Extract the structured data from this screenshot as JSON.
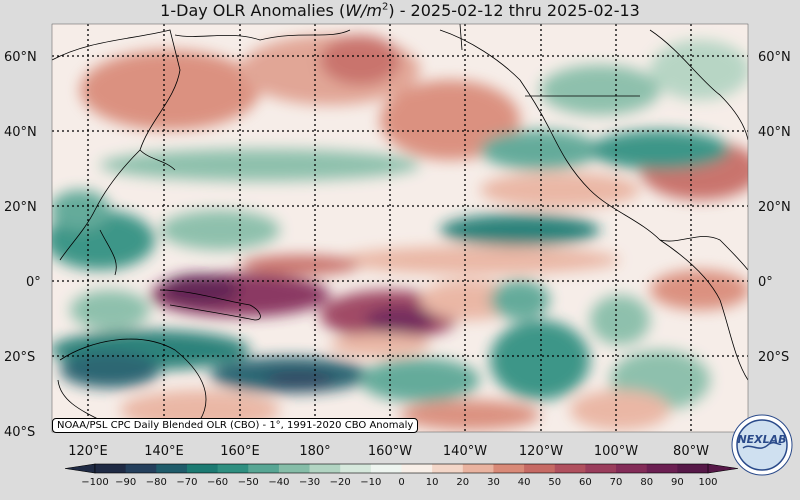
{
  "title_prefix": "1-Day OLR Anomalies (",
  "title_unit": "W/m",
  "title_unit_exp": "2",
  "title_suffix": ") - 2025-02-12 thru 2025-02-13",
  "source_label": "NOAA/PSL CPC Daily Blended OLR (CBO) - 1°, 1991-2020 CBO Anomaly",
  "logo_text": "NEXLAB",
  "lat_labels": [
    "60°N",
    "40°N",
    "20°N",
    "0°",
    "20°S",
    "40°S"
  ],
  "lon_labels": [
    "120°E",
    "140°E",
    "160°E",
    "180°",
    "160°W",
    "140°W",
    "120°W",
    "100°W",
    "80°W"
  ],
  "colorbar": {
    "ticks": [
      "−100",
      "−90",
      "−80",
      "−70",
      "−60",
      "−50",
      "−40",
      "−30",
      "−20",
      "−10",
      "0",
      "10",
      "20",
      "30",
      "40",
      "50",
      "60",
      "70",
      "80",
      "90",
      "100"
    ],
    "colors": [
      "#1f2a44",
      "#243f5c",
      "#1f5b6a",
      "#1c7a72",
      "#2f8f80",
      "#58a694",
      "#86bda8",
      "#b2d4c2",
      "#d6e8dc",
      "#eef5f0",
      "#f8efe8",
      "#f3d6c8",
      "#e9b3a0",
      "#d98a78",
      "#c66a64",
      "#b0505e",
      "#9a3d5c",
      "#832c58",
      "#6b1f52",
      "#561848"
    ]
  },
  "colors": {
    "background": "#dcdcdc",
    "negative_anomaly": "#1c7a72",
    "positive_anomaly": "#c66a64"
  }
}
